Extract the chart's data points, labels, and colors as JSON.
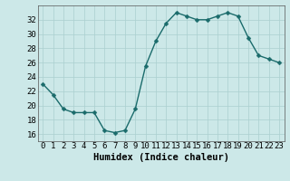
{
  "x": [
    0,
    1,
    2,
    3,
    4,
    5,
    6,
    7,
    8,
    9,
    10,
    11,
    12,
    13,
    14,
    15,
    16,
    17,
    18,
    19,
    20,
    21,
    22,
    23
  ],
  "y": [
    23,
    21.5,
    19.5,
    19,
    19,
    19,
    16.5,
    16.2,
    16.5,
    19.5,
    25.5,
    29,
    31.5,
    33,
    32.5,
    32,
    32,
    32.5,
    33,
    32.5,
    29.5,
    27,
    26.5,
    26
  ],
  "line_color": "#1a6b6b",
  "marker_color": "#1a6b6b",
  "bg_color": "#cce8e8",
  "grid_color": "#aacfcf",
  "xlabel": "Humidex (Indice chaleur)",
  "ylim": [
    15,
    34
  ],
  "xlim": [
    -0.5,
    23.5
  ],
  "yticks": [
    16,
    18,
    20,
    22,
    24,
    26,
    28,
    30,
    32
  ],
  "xticks": [
    0,
    1,
    2,
    3,
    4,
    5,
    6,
    7,
    8,
    9,
    10,
    11,
    12,
    13,
    14,
    15,
    16,
    17,
    18,
    19,
    20,
    21,
    22,
    23
  ],
  "xlabel_fontsize": 7.5,
  "tick_fontsize": 6.5,
  "marker_size": 2.5,
  "line_width": 1.0
}
